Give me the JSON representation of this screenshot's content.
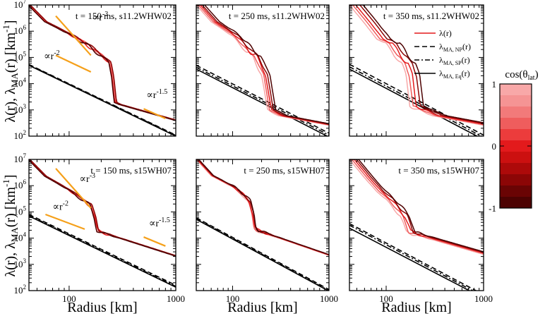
{
  "chart_data": {
    "type": "line",
    "x_axis": {
      "label": "Radius [km]",
      "scale": "log",
      "xlim": [
        42,
        1000
      ],
      "ticks": [
        100,
        1000
      ],
      "tick_labels": [
        "100",
        "1000"
      ]
    },
    "y_axis": {
      "label_main": "λ(r), λ",
      "label_sub": "MA",
      "label_end": "(r) [km",
      "label_exp": "-1",
      "label_close": "]",
      "scale": "log",
      "ylim": [
        100,
        10000000
      ],
      "tick_exps": [
        2,
        3,
        4,
        5,
        6,
        7
      ]
    },
    "legend": {
      "placement": "top-right of panel 3",
      "items": [
        {
          "main": "λ(r)",
          "sub": "",
          "tail": "",
          "style": "solid",
          "color": "#e31a1c"
        },
        {
          "main": "λ",
          "sub": "MA, NP",
          "tail": "(r)",
          "style": "dash",
          "color": "#000000"
        },
        {
          "main": "λ",
          "sub": "MA, SP",
          "tail": "(r)",
          "style": "dashdot",
          "color": "#000000"
        },
        {
          "main": "λ",
          "sub": "MA, Eq",
          "tail": "(r)",
          "style": "solid",
          "color": "#000000"
        }
      ]
    },
    "colorbar": {
      "title": "cos(θ",
      "title_sub": "lat",
      "title_close": ")",
      "tick_labels": [
        "1",
        "0",
        "-1"
      ],
      "tick_values": [
        1,
        0,
        -1
      ],
      "colors": [
        "#f8a8a8",
        "#f59494",
        "#f27a7a",
        "#ef5d5d",
        "#ec3c3c",
        "#e31a1c",
        "#cc1010",
        "#ad0a0a",
        "#8c0606",
        "#6a0404",
        "#4d0202"
      ]
    },
    "panels": [
      {
        "label": "t = 150 ms, s11.2WHW02",
        "lambda_profiles": {
          "base": [
            [
              42,
              10000000.0
            ],
            [
              60,
              2300000.0
            ],
            [
              100,
              800000.0
            ],
            [
              150,
              300000.0
            ],
            [
              200,
              120000.0
            ],
            [
              240,
              65000.0
            ],
            [
              255,
              18000.0
            ],
            [
              270,
              2000.0
            ],
            [
              300,
              1600.0
            ],
            [
              1000,
              400.0
            ]
          ],
          "perturbations": [
            {
              "cos_theta": 1.0,
              "shift": 0.0,
              "scale": 1.0
            },
            {
              "cos_theta": 0.5,
              "shift": 0.02,
              "scale": 0.85
            },
            {
              "cos_theta": 0.0,
              "shift": -0.01,
              "scale": 1.15
            },
            {
              "cos_theta": -0.5,
              "shift": 0.03,
              "scale": 0.9
            },
            {
              "cos_theta": -1.0,
              "shift": -0.02,
              "scale": 1.1
            }
          ]
        },
        "lambda_ma": {
          "NP": [
            [
              42,
              54000.0
            ],
            [
              1000,
              110.0
            ]
          ],
          "SP": [
            [
              42,
              52000.0
            ],
            [
              1000,
              105.0
            ]
          ],
          "Eq": [
            [
              42,
              50000.0
            ],
            [
              1000,
              100.0
            ]
          ]
        },
        "annotations": [
          {
            "text": "∝r",
            "sup": "-3",
            "line": [
              [
                75,
                3800000.0
              ],
              [
                160,
                120000.0
              ]
            ],
            "text_at": [
              165,
              2600000.0
            ]
          },
          {
            "text": "∝r",
            "sup": "-2",
            "line": [
              [
                75,
                120000.0
              ],
              [
                160,
                28000.0
              ]
            ],
            "text_at": [
              58,
              85000.0
            ]
          },
          {
            "text": "∝r",
            "sup": "-1.5",
            "line": [
              [
                500,
                1100.0
              ],
              [
                800,
                470.0
              ]
            ],
            "text_at": [
              530,
              2800.0
            ]
          }
        ]
      },
      {
        "label": "t = 250 ms, s11.2WHW02",
        "lambda_profiles": {
          "base": [
            [
              42,
              10000000.0
            ],
            [
              60,
              2300000.0
            ],
            [
              100,
              650000.0
            ],
            [
              140,
              160000.0
            ],
            [
              160,
              120000.0
            ],
            [
              180,
              45000.0
            ],
            [
              200,
              22000.0
            ],
            [
              230,
              1000.0
            ],
            [
              300,
              600.0
            ],
            [
              1000,
              260.0
            ]
          ],
          "perturbations": [
            {
              "cos_theta": 1.0,
              "shift": 0.0,
              "scale": 1.0
            },
            {
              "cos_theta": 0.5,
              "shift": 0.05,
              "scale": 0.8
            },
            {
              "cos_theta": 0.0,
              "shift": 0.1,
              "scale": 1.2
            },
            {
              "cos_theta": -0.5,
              "shift": 0.15,
              "scale": 0.9
            },
            {
              "cos_theta": -1.0,
              "shift": 0.22,
              "scale": 1.1
            }
          ]
        },
        "lambda_ma": {
          "NP": [
            [
              42,
              50000.0
            ],
            [
              1000,
              130.0
            ]
          ],
          "SP": [
            [
              42,
              42000.0
            ],
            [
              1000,
              110.0
            ]
          ],
          "Eq": [
            [
              42,
              36000.0
            ],
            [
              1000,
              92.0
            ]
          ]
        },
        "annotations": []
      },
      {
        "label": "t = 350 ms, s11.2WHW02",
        "lambda_profiles": {
          "base": [
            [
              42,
              10000000.0
            ],
            [
              60,
              2000000.0
            ],
            [
              80,
              500000.0
            ],
            [
              100,
              350000.0
            ],
            [
              120,
              120000.0
            ],
            [
              145,
              60000.0
            ],
            [
              160,
              20000.0
            ],
            [
              175,
              1400.0
            ],
            [
              300,
              600.0
            ],
            [
              1000,
              260.0
            ]
          ],
          "perturbations": [
            {
              "cos_theta": 1.0,
              "shift": 0.0,
              "scale": 1.0
            },
            {
              "cos_theta": 0.5,
              "shift": 0.08,
              "scale": 0.8
            },
            {
              "cos_theta": 0.0,
              "shift": 0.16,
              "scale": 1.25
            },
            {
              "cos_theta": -0.5,
              "shift": 0.28,
              "scale": 0.9
            },
            {
              "cos_theta": -1.0,
              "shift": 0.38,
              "scale": 1.15
            }
          ]
        },
        "lambda_ma": {
          "NP": [
            [
              42,
              55000.0
            ],
            [
              1000,
              110.0
            ]
          ],
          "SP": [
            [
              42,
              44000.0
            ],
            [
              1000,
              90.0
            ]
          ],
          "Eq": [
            [
              42,
              36000.0
            ],
            [
              1000,
              74.0
            ]
          ]
        },
        "annotations": []
      },
      {
        "label": "t = 150 ms, s15WH07",
        "lambda_profiles": {
          "base": [
            [
              42,
              10000000.0
            ],
            [
              60,
              2300000.0
            ],
            [
              100,
              700000.0
            ],
            [
              140,
              260000.0
            ],
            [
              160,
              180000.0
            ],
            [
              175,
              60000.0
            ],
            [
              185,
              20000.0
            ],
            [
              200,
              17000.0
            ],
            [
              1000,
              2100.0
            ]
          ],
          "perturbations": [
            {
              "cos_theta": 1.0,
              "shift": 0.0,
              "scale": 1.0
            },
            {
              "cos_theta": 0.5,
              "shift": 0.01,
              "scale": 0.75
            },
            {
              "cos_theta": 0.0,
              "shift": -0.01,
              "scale": 1.2
            },
            {
              "cos_theta": -0.5,
              "shift": 0.02,
              "scale": 0.85
            },
            {
              "cos_theta": -1.0,
              "shift": -0.02,
              "scale": 1.05
            }
          ]
        },
        "lambda_ma": {
          "NP": [
            [
              42,
              80000.0
            ],
            [
              1000,
              160.0
            ]
          ],
          "SP": [
            [
              42,
              74000.0
            ],
            [
              1000,
              145.0
            ]
          ],
          "Eq": [
            [
              42,
              70000.0
            ],
            [
              1000,
              135.0
            ]
          ]
        },
        "annotations": [
          {
            "text": "∝r",
            "sup": "-3",
            "line": [
              [
                75,
                4500000.0
              ],
              [
                160,
                140000.0
              ]
            ],
            "text_at": [
              125,
              1400000.0
            ]
          },
          {
            "text": "∝r",
            "sup": "-2",
            "line": [
              [
                60,
                80000.0
              ],
              [
                140,
                22000.0
              ]
            ],
            "text_at": [
              70,
              120000.0
            ]
          },
          {
            "text": "∝r",
            "sup": "-1.5",
            "line": [
              [
                500,
                11000.0
              ],
              [
                800,
                5000.0
              ]
            ],
            "text_at": [
              560,
              28000.0
            ]
          }
        ]
      },
      {
        "label": "t = 250 ms, s15WH07",
        "lambda_profiles": {
          "base": [
            [
              42,
              10000000.0
            ],
            [
              60,
              2400000.0
            ],
            [
              100,
              900000.0
            ],
            [
              130,
              400000.0
            ],
            [
              145,
              250000.0
            ],
            [
              158,
              80000.0
            ],
            [
              165,
              26000.0
            ],
            [
              175,
              20000.0
            ],
            [
              1000,
              2200.0
            ]
          ],
          "perturbations": [
            {
              "cos_theta": 1.0,
              "shift": 0.0,
              "scale": 1.0
            },
            {
              "cos_theta": 0.5,
              "shift": 0.015,
              "scale": 0.9
            },
            {
              "cos_theta": 0.0,
              "shift": 0.03,
              "scale": 1.1
            },
            {
              "cos_theta": -0.5,
              "shift": 0.045,
              "scale": 0.95
            },
            {
              "cos_theta": -1.0,
              "shift": 0.06,
              "scale": 1.05
            }
          ]
        },
        "lambda_ma": {
          "NP": [
            [
              42,
              60000.0
            ],
            [
              1000,
              110.0
            ]
          ],
          "SP": [
            [
              42,
              56000.0
            ],
            [
              1000,
              100.0
            ]
          ],
          "Eq": [
            [
              42,
              52000.0
            ],
            [
              1000,
              95.0
            ]
          ]
        },
        "annotations": []
      },
      {
        "label": "t = 350 ms, s15WH07",
        "lambda_profiles": {
          "base": [
            [
              42,
              10000000.0
            ],
            [
              60,
              2000000.0
            ],
            [
              80,
              600000.0
            ],
            [
              100,
              300000.0
            ],
            [
              120,
              130000.0
            ],
            [
              140,
              70000.0
            ],
            [
              150,
              35000.0
            ],
            [
              160,
              17000.0
            ],
            [
              1000,
              2400.0
            ]
          ],
          "perturbations": [
            {
              "cos_theta": 1.0,
              "shift": 0.0,
              "scale": 1.0
            },
            {
              "cos_theta": 0.5,
              "shift": 0.06,
              "scale": 0.8
            },
            {
              "cos_theta": 0.0,
              "shift": 0.12,
              "scale": 1.2
            },
            {
              "cos_theta": -0.5,
              "shift": 0.18,
              "scale": 0.9
            },
            {
              "cos_theta": -1.0,
              "shift": 0.24,
              "scale": 1.1
            }
          ]
        },
        "lambda_ma": {
          "NP": [
            [
              42,
              36000.0
            ],
            [
              1000,
              70.0
            ]
          ],
          "SP": [
            [
              42,
              31000.0
            ],
            [
              1000,
              60.0
            ]
          ],
          "Eq": [
            [
              42,
              24000.0
            ],
            [
              1000,
              52.0
            ]
          ]
        },
        "annotations": []
      }
    ]
  }
}
